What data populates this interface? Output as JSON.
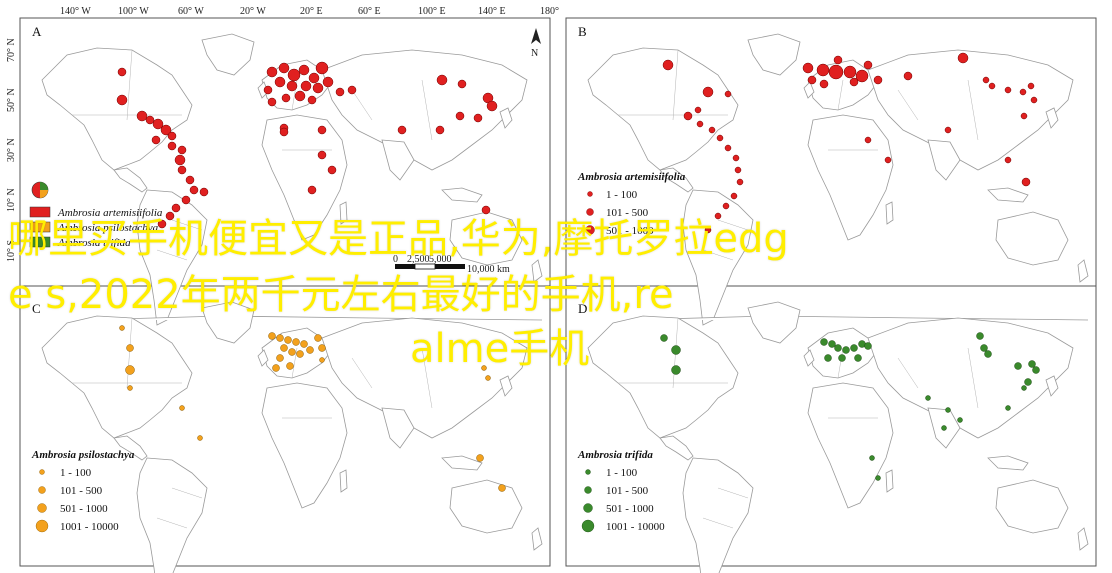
{
  "overlay_caption": {
    "line1": "哪里买手机便宜又是正品,华为,摩托罗拉edg",
    "line2": "e s,2022年两千元左右最好的手机,re",
    "line3": "alme手机"
  },
  "coordinates": {
    "top": [
      "140° W",
      "100° W",
      "60° W",
      "20° W",
      "20° E",
      "60° E",
      "100° E",
      "140° E",
      "180°"
    ],
    "left": [
      "70° N",
      "50° N",
      "30° N",
      "10° N",
      "10° S"
    ]
  },
  "compass": {
    "label": "N"
  },
  "scalebar": {
    "labels": [
      "0",
      "2,500",
      "5,000",
      "10,000 km"
    ]
  },
  "panels": [
    {
      "label": "A",
      "legend": {
        "title": "",
        "items": [
          {
            "text": "Ambrosia artemisiifolia",
            "color": "#e02020"
          },
          {
            "text": "Ambrosia psilostachya",
            "color": "#f3a11d"
          },
          {
            "text": "Ambrosia trifida",
            "color": "#3a8a2c"
          }
        ]
      },
      "color": "#e02020"
    },
    {
      "label": "B",
      "legend": {
        "title": "Ambrosia artemisiifolia",
        "items": [
          "1 - 100",
          "101 - 500",
          "501 - 1000"
        ]
      },
      "color": "#e02020"
    },
    {
      "label": "C",
      "legend": {
        "title": "Ambrosia psilostachya",
        "items": [
          "1 - 100",
          "101 - 500",
          "501 - 1000",
          "1001 - 10000"
        ]
      },
      "color": "#f3a11d"
    },
    {
      "label": "D",
      "legend": {
        "title": "Ambrosia trifida",
        "items": [
          "1 - 100",
          "101 - 500",
          "501 - 1000",
          "1001 - 10000"
        ]
      },
      "color": "#3a8a2c"
    }
  ]
}
